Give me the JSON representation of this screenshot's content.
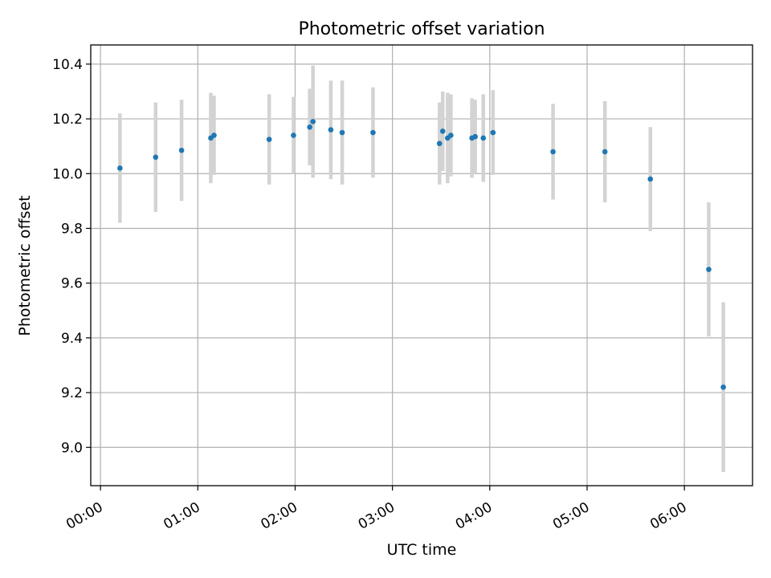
{
  "chart_data": {
    "type": "scatter",
    "title": "Photometric offset variation",
    "xlabel": "UTC time",
    "ylabel": "Photometric offset",
    "x_ticks": [
      "00:00",
      "01:00",
      "02:00",
      "03:00",
      "04:00",
      "05:00",
      "06:00"
    ],
    "y_ticks": [
      "9.0",
      "9.2",
      "9.4",
      "9.6",
      "9.8",
      "10.0",
      "10.2",
      "10.4"
    ],
    "xlim": [
      "-00:06",
      "06:42"
    ],
    "ylim": [
      8.86,
      10.47
    ],
    "grid": true,
    "colors": {
      "point": "#1f77b4",
      "errorbar": "#d3d3d3",
      "grid": "#b0b0b0"
    },
    "series": [
      {
        "x": [
          "00:12",
          "00:34",
          "00:50",
          "01:08",
          "01:10",
          "01:44",
          "01:59",
          "02:09",
          "02:11",
          "02:22",
          "02:29",
          "02:48",
          "03:29",
          "03:31",
          "03:34",
          "03:36",
          "03:49",
          "03:51",
          "03:56",
          "04:02",
          "04:39",
          "05:11",
          "05:39",
          "06:15",
          "06:24"
        ],
        "y": [
          10.02,
          10.06,
          10.085,
          10.13,
          10.14,
          10.125,
          10.14,
          10.17,
          10.19,
          10.16,
          10.15,
          10.15,
          10.11,
          10.155,
          10.13,
          10.14,
          10.13,
          10.135,
          10.13,
          10.15,
          10.08,
          10.08,
          9.98,
          9.65,
          9.22
        ],
        "yerr": [
          0.2,
          0.2,
          0.185,
          0.165,
          0.145,
          0.165,
          0.14,
          0.14,
          0.205,
          0.18,
          0.19,
          0.165,
          0.15,
          0.145,
          0.165,
          0.15,
          0.145,
          0.135,
          0.16,
          0.155,
          0.175,
          0.185,
          0.19,
          0.245,
          0.31
        ]
      }
    ]
  }
}
